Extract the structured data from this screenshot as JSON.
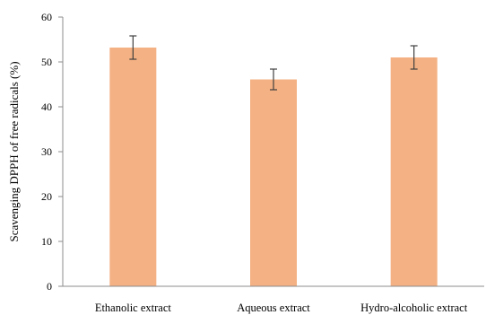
{
  "chart_data": {
    "type": "bar",
    "title": "",
    "xlabel": "",
    "ylabel": "Scavenging DPPH of free radicals (%)",
    "categories": [
      "Ethanolic extract",
      "Aqueous extract",
      "Hydro-alcoholic extract"
    ],
    "values": [
      53.2,
      46.1,
      51.0
    ],
    "error": [
      2.6,
      2.3,
      2.6
    ],
    "ylim": [
      0,
      60
    ],
    "yticks": [
      0,
      10,
      20,
      30,
      40,
      50,
      60
    ],
    "grid": false,
    "legend": "none",
    "bar_color": "#F4B183",
    "error_color": "#404040"
  }
}
